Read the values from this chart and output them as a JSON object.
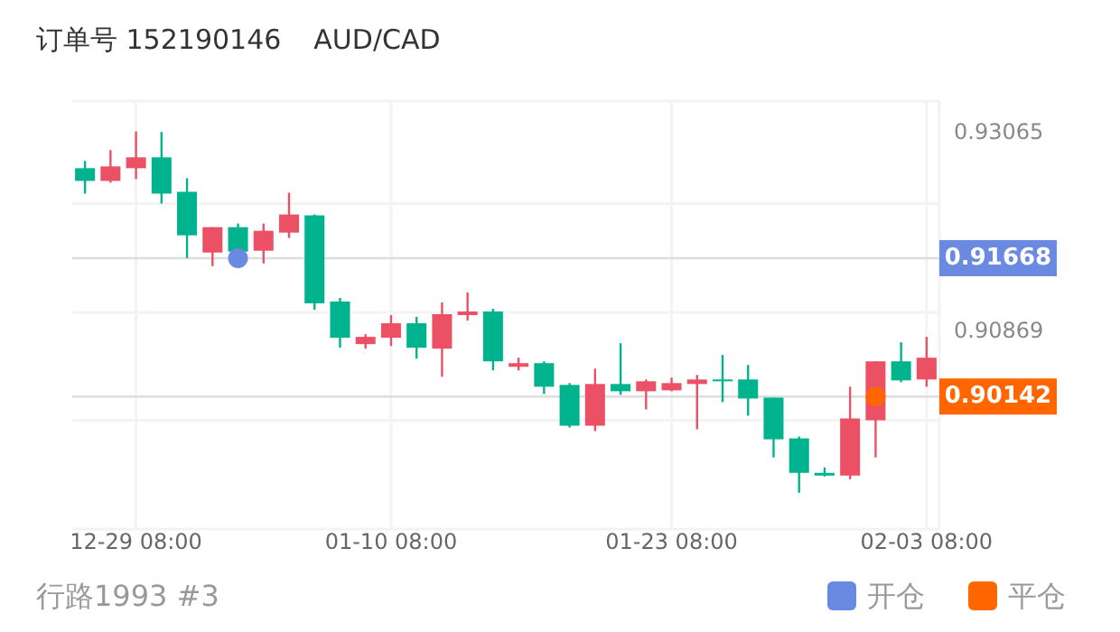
{
  "chart_data": {
    "type": "candlestick",
    "title": "订单号 152190146",
    "subtitle": "AUD/CAD",
    "categories": [
      null,
      null,
      "12-29 08:00",
      null,
      null,
      null,
      null,
      null,
      null,
      null,
      null,
      null,
      "01-10 08:00",
      null,
      null,
      null,
      null,
      null,
      null,
      null,
      null,
      null,
      null,
      "01-23 08:00",
      null,
      null,
      null,
      null,
      null,
      null,
      null,
      null,
      null,
      "02-03 08:00"
    ],
    "ohlc": [
      [
        0.9266,
        0.9274,
        0.9238,
        0.9252
      ],
      [
        0.9252,
        0.9286,
        0.925,
        0.9268
      ],
      [
        0.9266,
        0.93065,
        0.9254,
        0.9278
      ],
      [
        0.9278,
        0.9306,
        0.9227,
        0.9238
      ],
      [
        0.924,
        0.9255,
        0.9167,
        0.9192
      ],
      [
        0.9173,
        0.9201,
        0.9158,
        0.9201
      ],
      [
        0.9201,
        0.9205,
        0.9173,
        0.9174
      ],
      [
        0.9175,
        0.9205,
        0.9161,
        0.9197
      ],
      [
        0.9195,
        0.9239,
        0.9189,
        0.9215
      ],
      [
        0.9214,
        0.9215,
        0.911,
        0.9117
      ],
      [
        0.9119,
        0.9123,
        0.9068,
        0.9079
      ],
      [
        0.9072,
        0.9083,
        0.9067,
        0.908
      ],
      [
        0.9079,
        0.9104,
        0.907,
        0.9095
      ],
      [
        0.9095,
        0.9102,
        0.9056,
        0.9068
      ],
      [
        0.9067,
        0.9118,
        0.9036,
        0.9105
      ],
      [
        0.9104,
        0.9129,
        0.9098,
        0.9108
      ],
      [
        0.9108,
        0.9111,
        0.9043,
        0.9053
      ],
      [
        0.9047,
        0.9057,
        0.9043,
        0.9051
      ],
      [
        0.9051,
        0.9053,
        0.9017,
        0.9025
      ],
      [
        0.9027,
        0.9029,
        0.898,
        0.8982
      ],
      [
        0.8982,
        0.9045,
        0.8976,
        0.9028
      ],
      [
        0.9028,
        0.9073,
        0.9016,
        0.902
      ],
      [
        0.902,
        0.9033,
        0.9,
        0.9031
      ],
      [
        0.9021,
        0.9035,
        0.902,
        0.9029
      ],
      [
        0.9028,
        0.9038,
        0.8978,
        0.9033
      ],
      [
        0.9033,
        0.906,
        0.9008,
        0.9031
      ],
      [
        0.9033,
        0.9049,
        0.8993,
        0.9012
      ],
      [
        0.9013,
        0.9013,
        0.8947,
        0.8967
      ],
      [
        0.8968,
        0.897,
        0.8908,
        0.893
      ],
      [
        0.893,
        0.8936,
        0.8926,
        0.8927
      ],
      [
        0.8927,
        0.9025,
        0.8923,
        0.899
      ],
      [
        0.8988,
        0.9053,
        0.8947,
        0.9053
      ],
      [
        0.9053,
        0.9074,
        0.903,
        0.9032
      ],
      [
        0.9033,
        0.908,
        0.9025,
        0.9057
      ]
    ],
    "colors": [
      "#00b38f",
      "#ec5064",
      "#ec5064",
      "#00b38f",
      "#00b38f",
      "#ec5064",
      "#00b38f",
      "#ec5064",
      "#ec5064",
      "#00b38f",
      "#00b38f",
      "#ec5064",
      "#ec5064",
      "#00b38f",
      "#ec5064",
      "#ec5064",
      "#00b38f",
      "#ec5064",
      "#00b38f",
      "#00b38f",
      "#ec5064",
      "#00b38f",
      "#ec5064",
      "#ec5064",
      "#ec5064",
      "#00b38f",
      "#00b38f",
      "#00b38f",
      "#00b38f",
      "#00b38f",
      "#ec5064",
      "#ec5064",
      "#00b38f",
      "#ec5064"
    ],
    "series": [
      {
        "name": "开仓",
        "type": "scatter",
        "color": "#6a89e0",
        "values": [
          null,
          null,
          null,
          null,
          null,
          null,
          0.91668,
          null,
          null,
          null,
          null,
          null,
          null,
          null,
          null,
          null,
          null,
          null,
          null,
          null,
          null,
          null,
          null,
          null,
          null,
          null,
          null,
          null,
          null,
          null,
          null,
          null,
          null,
          null
        ]
      },
      {
        "name": "平仓",
        "type": "scatter",
        "color": "#ff6600",
        "values": [
          null,
          null,
          null,
          null,
          null,
          null,
          null,
          null,
          null,
          null,
          null,
          null,
          null,
          null,
          null,
          null,
          null,
          null,
          null,
          null,
          null,
          null,
          null,
          null,
          null,
          null,
          null,
          null,
          null,
          null,
          null,
          0.90142,
          null,
          null
        ]
      }
    ],
    "ylim": [
      0.8868,
      0.934
    ],
    "yticks": [
      0.93065,
      {
        "value": 0.9227,
        "label": null
      },
      {
        "value": 0.9107,
        "label": null
      },
      0.90869,
      {
        "value": 0.8988,
        "label": null
      }
    ],
    "ref_lines": [
      {
        "axis": "y",
        "value": 0.91668,
        "label": "0.91668",
        "color": "#dddddd"
      },
      {
        "axis": "y",
        "value": 0.90142,
        "label": "0.90142",
        "color": "#dddddd"
      }
    ],
    "annotations": [
      "行路1993 #3"
    ],
    "marker": "circle",
    "legend": "bottom right",
    "grid": true
  }
}
